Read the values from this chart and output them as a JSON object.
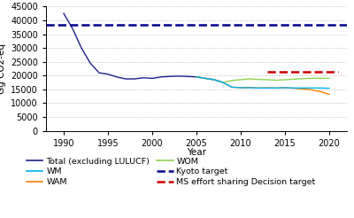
{
  "title": "",
  "ylabel": "Gg CO2-eq",
  "xlabel": "Year",
  "ylim": [
    0,
    45000
  ],
  "yticks": [
    0,
    5000,
    10000,
    15000,
    20000,
    25000,
    30000,
    35000,
    40000,
    45000
  ],
  "xlim": [
    1988,
    2022
  ],
  "xticks": [
    1990,
    1995,
    2000,
    2005,
    2010,
    2015,
    2020
  ],
  "total_lulucf": {
    "x": [
      1990,
      1991,
      1992,
      1993,
      1994,
      1995,
      1996,
      1997,
      1998,
      1999,
      2000,
      2001,
      2002,
      2003,
      2004,
      2005,
      2006,
      2007,
      2008
    ],
    "y": [
      42500,
      37000,
      30000,
      24500,
      21000,
      20500,
      19500,
      18800,
      18800,
      19200,
      19000,
      19500,
      19700,
      19800,
      19700,
      19500,
      19000,
      18500,
      17500
    ],
    "color": "#1f1f8c",
    "label": "Total (excluding LULUCF)"
  },
  "wam": {
    "x": [
      2005,
      2006,
      2007,
      2008,
      2009,
      2010,
      2011,
      2012,
      2013,
      2014,
      2015,
      2016,
      2017,
      2018,
      2019,
      2020
    ],
    "y": [
      19500,
      19000,
      18500,
      17500,
      15800,
      15600,
      15700,
      15500,
      15600,
      15500,
      15600,
      15400,
      15200,
      14800,
      14200,
      13200
    ],
    "color": "#ff8000",
    "label": "WAM"
  },
  "wom": {
    "x": [
      2005,
      2006,
      2007,
      2008,
      2009,
      2010,
      2011,
      2012,
      2013,
      2014,
      2015,
      2016,
      2017,
      2018,
      2019,
      2020
    ],
    "y": [
      19500,
      19000,
      18500,
      17500,
      18200,
      18500,
      18800,
      18600,
      18500,
      18300,
      18500,
      18700,
      18900,
      19000,
      19000,
      19000
    ],
    "color": "#92d050",
    "label": "WOM"
  },
  "wm": {
    "x": [
      2005,
      2006,
      2007,
      2008,
      2009,
      2010,
      2011,
      2012,
      2013,
      2014,
      2015,
      2016,
      2017,
      2018,
      2019,
      2020
    ],
    "y": [
      19500,
      19000,
      18500,
      17500,
      15800,
      15600,
      15600,
      15500,
      15500,
      15500,
      15600,
      15500,
      15500,
      15500,
      15500,
      15400
    ],
    "color": "#00b0f0",
    "label": "WM"
  },
  "kyoto_target": {
    "y": 38300,
    "x_start": 1988,
    "x_end": 2022,
    "color": "#00008b",
    "label": "Kyoto target"
  },
  "ms_effort_target": {
    "y": 21500,
    "x_start": 2013,
    "x_end": 2021,
    "color": "#cc0000",
    "label": "MS effort sharing Decision target"
  },
  "grid_color": "#bbbbbb",
  "bg_color": "#ffffff",
  "legend_fontsize": 6.8,
  "tick_fontsize": 7,
  "label_fontsize": 7.5
}
